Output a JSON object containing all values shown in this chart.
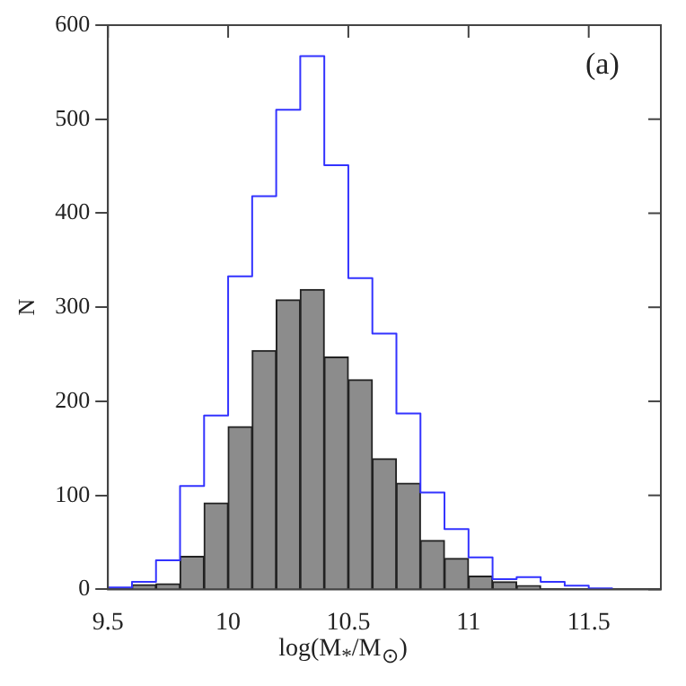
{
  "chart_data": {
    "type": "histogram",
    "xlabel": "log(M$_{*}$/M$_{⊙}$)",
    "ylabel": "N",
    "bins": [
      9.5,
      9.6,
      9.7,
      9.8,
      9.9,
      10.0,
      10.1,
      10.2,
      10.3,
      10.4,
      10.5,
      10.6,
      10.7,
      10.8,
      10.9,
      11.0,
      11.1,
      11.2,
      11.3,
      11.4,
      11.5,
      11.6,
      11.7
    ],
    "series": [
      {
        "color": "#8c8c8c",
        "values": [
          0,
          5,
          6,
          35,
          92,
          173,
          254,
          308,
          319,
          247,
          223,
          139,
          113,
          52,
          33,
          14,
          8,
          4,
          null,
          0,
          0,
          0
        ]
      },
      {
        "type": "step",
        "color": "#3333ff",
        "x": [
          9.5,
          9.6,
          9.7,
          9.8,
          9.9,
          10.0,
          10.1,
          10.2,
          10.3,
          10.4,
          10.5,
          10.6,
          10.7,
          10.8,
          10.9,
          11.0,
          11.1,
          11.2,
          11.3,
          11.4,
          11.5,
          11.6
        ],
        "values": [
          2,
          8,
          31,
          110,
          185,
          333,
          418,
          510,
          567,
          451,
          331,
          272,
          187,
          103,
          64,
          34,
          11,
          13,
          8,
          4,
          1,
          1
        ]
      }
    ],
    "xlim": [
      9.5,
      11.8
    ],
    "xticks": [
      9.5,
      10,
      10.5,
      11,
      11.5
    ],
    "ylim": [
      0,
      600
    ],
    "yticks": [
      0,
      100,
      200,
      300,
      400,
      500,
      600
    ],
    "grid": false,
    "legend": false,
    "annotations": [
      "(a)"
    ]
  }
}
